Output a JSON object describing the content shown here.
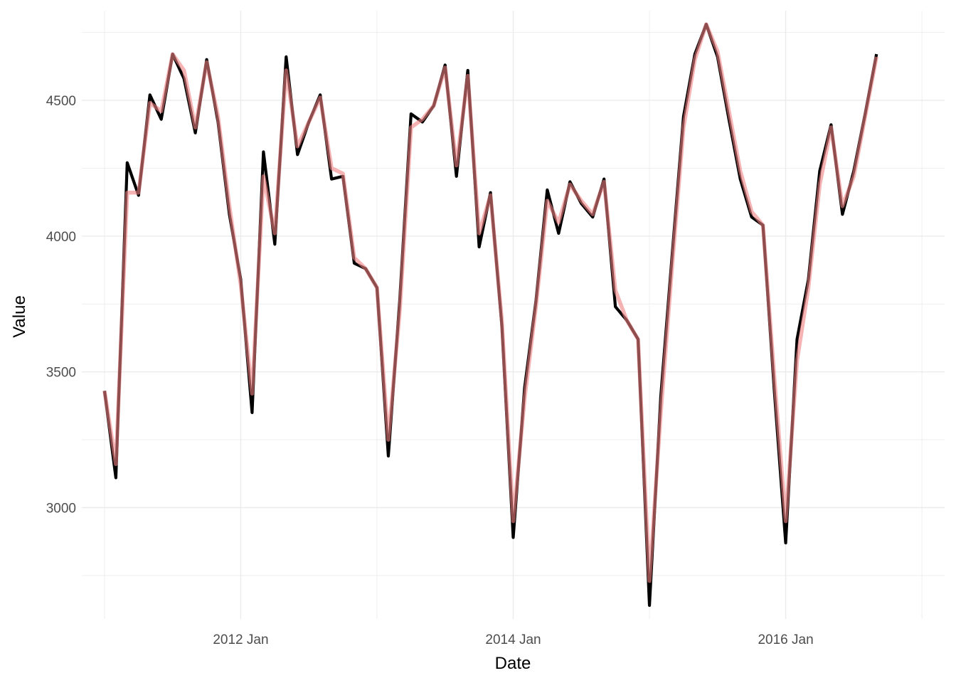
{
  "chart_data": {
    "type": "line",
    "title": "",
    "xlabel": "Date",
    "ylabel": "Value",
    "x_start": "2011-01",
    "x_ticks": [
      {
        "label": "2012 Jan",
        "date": "2012-01"
      },
      {
        "label": "2014 Jan",
        "date": "2014-01"
      },
      {
        "label": "2016 Jan",
        "date": "2016-01"
      }
    ],
    "y_ticks": [
      3000,
      3500,
      4000,
      4500
    ],
    "xlim": [
      "2010-11",
      "2017-03"
    ],
    "ylim": [
      2590,
      4830
    ],
    "grid": true,
    "legend": "none",
    "series": [
      {
        "color": "#000000",
        "values": [
          3430,
          3110,
          4270,
          4150,
          4520,
          4430,
          4670,
          4580,
          4380,
          4650,
          4420,
          4080,
          3840,
          3350,
          4310,
          3970,
          4660,
          4300,
          4420,
          4520,
          4210,
          4220,
          3900,
          3880,
          3810,
          3190,
          3760,
          4450,
          4420,
          4480,
          4630,
          4220,
          4610,
          3960,
          4160,
          3670,
          2890,
          3440,
          3760,
          4170,
          4010,
          4200,
          4120,
          4070,
          4210,
          3740,
          3690,
          3620,
          2640,
          3410,
          3930,
          4440,
          4670,
          4780,
          4660,
          4430,
          4210,
          4070,
          4040,
          3430,
          2870,
          3620,
          3840,
          4240,
          4410,
          4080,
          4240,
          4450,
          4670
        ]
      },
      {
        "color": "#8b4547",
        "values": [
          3430,
          3160,
          4160,
          4160,
          4490,
          4460,
          4670,
          4610,
          4400,
          4640,
          4440,
          4110,
          3820,
          3420,
          4220,
          4010,
          4610,
          4330,
          4420,
          4510,
          4250,
          4230,
          3920,
          3880,
          3810,
          3250,
          3720,
          4400,
          4430,
          4480,
          4620,
          4260,
          4590,
          4010,
          4150,
          3690,
          2950,
          3400,
          3740,
          4130,
          4050,
          4190,
          4130,
          4080,
          4200,
          3800,
          3690,
          3620,
          2730,
          3350,
          3890,
          4400,
          4650,
          4780,
          4680,
          4460,
          4240,
          4090,
          4040,
          3480,
          2950,
          3540,
          3810,
          4190,
          4400,
          4110,
          4220,
          4440,
          4660
        ]
      }
    ]
  }
}
